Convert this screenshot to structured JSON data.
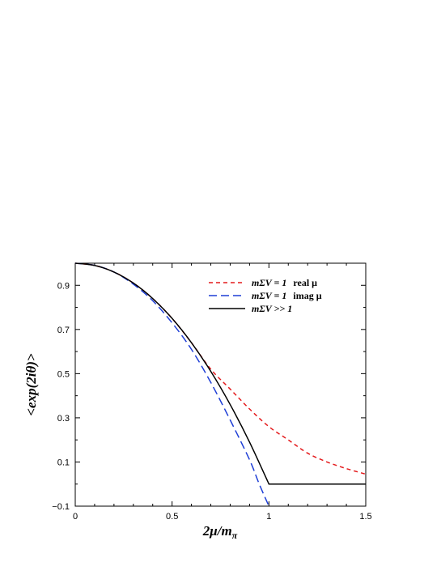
{
  "chart_data": {
    "type": "line",
    "title": "",
    "xlabel": "2μ/m",
    "xlabel_subscript": "π",
    "ylabel": "<exp(2iθ)>",
    "xlim": [
      0,
      1.5
    ],
    "ylim": [
      -0.1,
      1.0
    ],
    "xticks": [
      0,
      0.5,
      1,
      1.5
    ],
    "xtick_labels": [
      "0",
      "0.5",
      "1",
      "1.5"
    ],
    "yticks": [
      -0.1,
      0.1,
      0.3,
      0.5,
      0.7,
      0.9
    ],
    "ytick_labels": [
      "−0.1",
      "0.1",
      "0.3",
      "0.5",
      "0.7",
      "0.9"
    ],
    "grid": false,
    "legend_position": "top-right",
    "series": [
      {
        "name": "mΣV = 1  real μ",
        "name_math": "mΣV = 1",
        "name_text": "real μ",
        "color": "#e41a1c",
        "dash": "dashed",
        "x": [
          0,
          0.1,
          0.2,
          0.3,
          0.4,
          0.5,
          0.6,
          0.7,
          0.8,
          0.9,
          1.0,
          1.1,
          1.2,
          1.3,
          1.4,
          1.5
        ],
        "y": [
          1.0,
          0.99,
          0.96,
          0.91,
          0.84,
          0.75,
          0.64,
          0.52,
          0.43,
          0.34,
          0.26,
          0.2,
          0.14,
          0.1,
          0.07,
          0.045
        ]
      },
      {
        "name": "mΣV = 1  imag μ",
        "name_math": "mΣV = 1",
        "name_text": "imag μ",
        "color": "#1f3fd6",
        "dash": "long-dashed",
        "x": [
          0,
          0.1,
          0.2,
          0.3,
          0.4,
          0.5,
          0.6,
          0.7,
          0.8,
          0.9,
          0.95,
          1.0
        ],
        "y": [
          1.0,
          0.99,
          0.96,
          0.905,
          0.83,
          0.73,
          0.61,
          0.46,
          0.29,
          0.11,
          0.0,
          -0.1
        ]
      },
      {
        "name": "mΣV >> 1",
        "name_math": "mΣV >> 1",
        "name_text": "",
        "color": "#000000",
        "dash": "solid",
        "x": [
          0,
          0.1,
          0.2,
          0.3,
          0.4,
          0.5,
          0.6,
          0.7,
          0.8,
          0.9,
          1.0,
          1.5
        ],
        "y": [
          1.0,
          0.99,
          0.96,
          0.91,
          0.84,
          0.75,
          0.64,
          0.51,
          0.36,
          0.19,
          0.0,
          0.0
        ]
      }
    ]
  }
}
